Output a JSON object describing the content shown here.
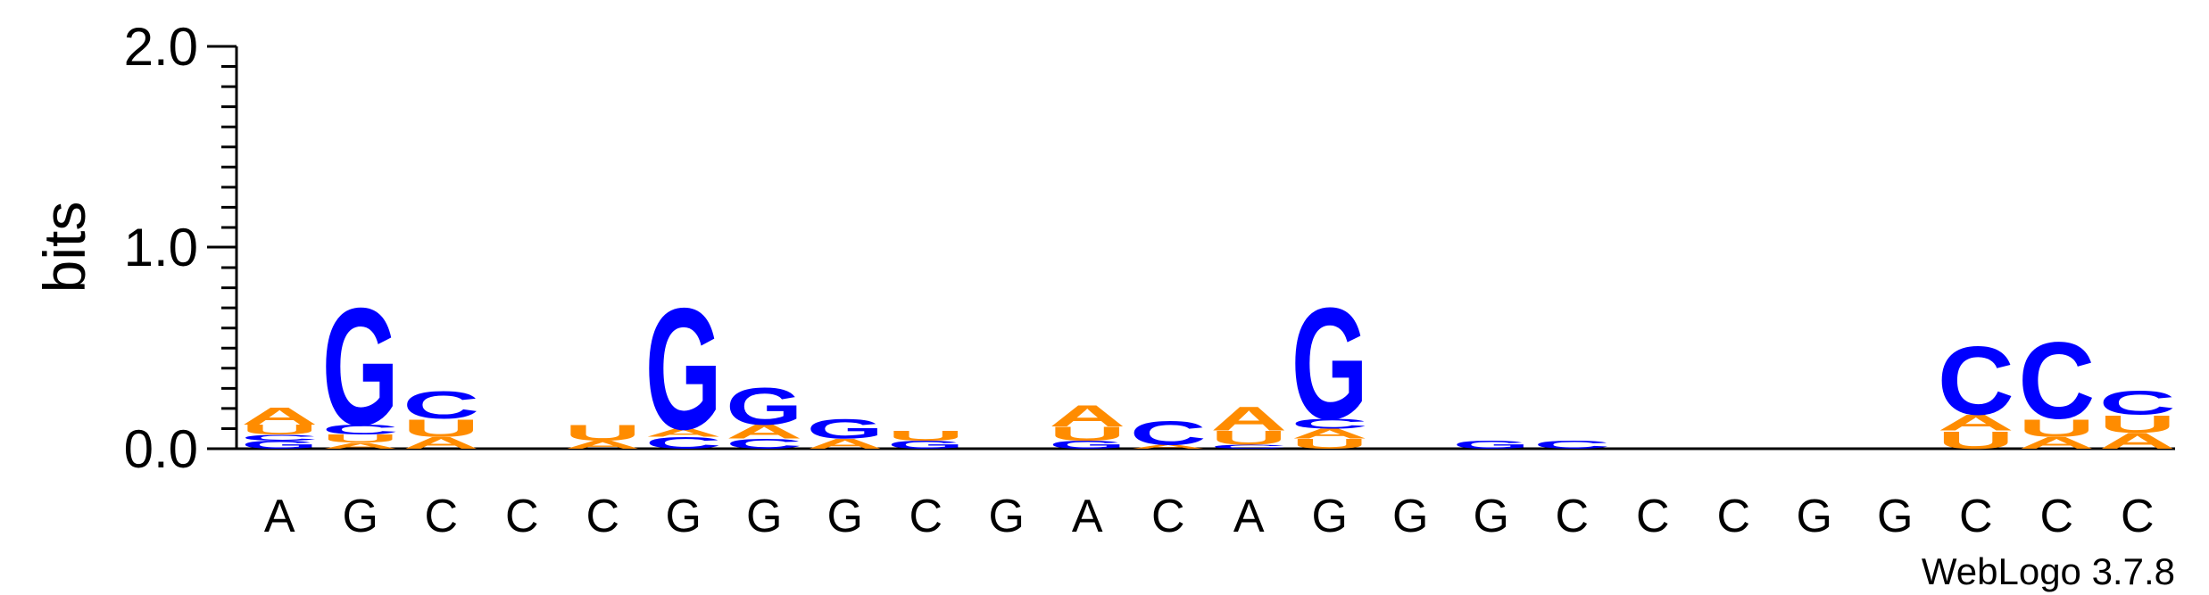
{
  "chart_data": {
    "type": "sequence-logo",
    "ylabel": "bits",
    "ylim": [
      0,
      2.0
    ],
    "yticks": [
      "0.0",
      "1.0",
      "2.0"
    ],
    "credit": "WebLogo 3.7.8",
    "colors": {
      "A": "#ff8c00",
      "U": "#ff8c00",
      "C": "#0000ff",
      "G": "#0000ff"
    },
    "x": [
      "A",
      "G",
      "C",
      "C",
      "C",
      "G",
      "G",
      "G",
      "C",
      "G",
      "A",
      "C",
      "A",
      "G",
      "G",
      "G",
      "C",
      "C",
      "C",
      "G",
      "G",
      "C",
      "C",
      "C"
    ],
    "stacks": [
      [
        {
          "letter": "G",
          "bits": 0.04
        },
        {
          "letter": "C",
          "bits": 0.03
        },
        {
          "letter": "U",
          "bits": 0.05
        },
        {
          "letter": "A",
          "bits": 0.09
        }
      ],
      [
        {
          "letter": "A",
          "bits": 0.03
        },
        {
          "letter": "U",
          "bits": 0.04
        },
        {
          "letter": "C",
          "bits": 0.05
        },
        {
          "letter": "U",
          "bits": 0.0
        },
        {
          "letter": "G",
          "bits": 0.6
        }
      ],
      [
        {
          "letter": "A",
          "bits": 0.06
        },
        {
          "letter": "U",
          "bits": 0.09
        },
        {
          "letter": "C",
          "bits": 0.14
        }
      ],
      [],
      [
        {
          "letter": "A",
          "bits": 0.04
        },
        {
          "letter": "U",
          "bits": 0.08
        }
      ],
      [
        {
          "letter": "C",
          "bits": 0.06
        },
        {
          "letter": "A",
          "bits": 0.04
        },
        {
          "letter": "G",
          "bits": 0.62
        }
      ],
      [
        {
          "letter": "C",
          "bits": 0.05
        },
        {
          "letter": "A",
          "bits": 0.07
        },
        {
          "letter": "G",
          "bits": 0.19
        }
      ],
      [
        {
          "letter": "A",
          "bits": 0.05
        },
        {
          "letter": "G",
          "bits": 0.1
        }
      ],
      [
        {
          "letter": "G",
          "bits": 0.04
        },
        {
          "letter": "U",
          "bits": 0.05
        }
      ],
      [],
      [
        {
          "letter": "G",
          "bits": 0.04
        },
        {
          "letter": "U",
          "bits": 0.07
        },
        {
          "letter": "A",
          "bits": 0.11
        }
      ],
      [
        {
          "letter": "A",
          "bits": 0.02
        },
        {
          "letter": "C",
          "bits": 0.12
        }
      ],
      [
        {
          "letter": "C",
          "bits": 0.02
        },
        {
          "letter": "U",
          "bits": 0.07
        },
        {
          "letter": "A",
          "bits": 0.12
        }
      ],
      [
        {
          "letter": "U",
          "bits": 0.05
        },
        {
          "letter": "A",
          "bits": 0.05
        },
        {
          "letter": "C",
          "bits": 0.05
        },
        {
          "letter": "G",
          "bits": 0.57
        }
      ],
      [],
      [
        {
          "letter": "G",
          "bits": 0.04
        }
      ],
      [
        {
          "letter": "C",
          "bits": 0.04
        }
      ],
      [],
      [],
      [],
      [],
      [
        {
          "letter": "U",
          "bits": 0.09
        },
        {
          "letter": "A",
          "bits": 0.08
        },
        {
          "letter": "C",
          "bits": 0.35
        }
      ],
      [
        {
          "letter": "A",
          "bits": 0.06
        },
        {
          "letter": "U",
          "bits": 0.09
        },
        {
          "letter": "C",
          "bits": 0.39
        }
      ],
      [
        {
          "letter": "A",
          "bits": 0.08
        },
        {
          "letter": "U",
          "bits": 0.09
        },
        {
          "letter": "C",
          "bits": 0.12
        }
      ]
    ]
  }
}
